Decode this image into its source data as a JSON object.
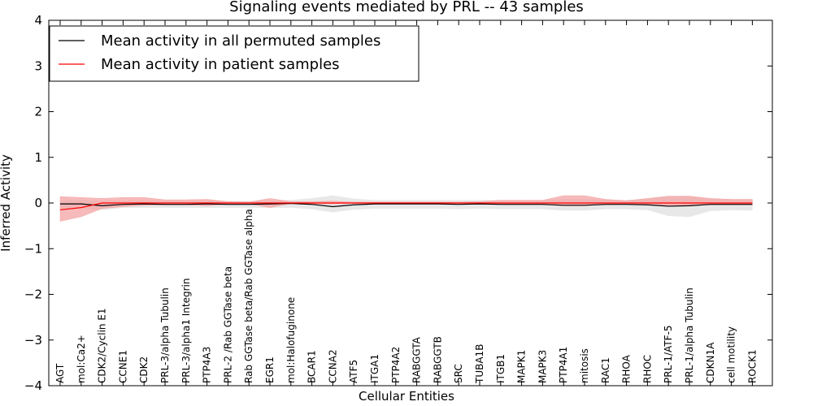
{
  "chart_data": {
    "type": "line",
    "title": "Signaling events mediated by PRL -- 43 samples",
    "xlabel": "Cellular Entities",
    "ylabel": "Inferred Activity",
    "ylim": [
      -4,
      4
    ],
    "yticks": [
      -4,
      -3,
      -2,
      -1,
      0,
      1,
      2,
      3,
      4
    ],
    "ytick_labels": [
      "−4",
      "−3",
      "−2",
      "−1",
      "0",
      "1",
      "2",
      "3",
      "4"
    ],
    "grid": false,
    "legend_position": "top-left",
    "categories": [
      "AGT",
      "mol:Ca2+",
      "CDK2/Cyclin E1",
      "CCNE1",
      "CDK2",
      "PRL-3/alpha Tubulin",
      "PRL-3/alpha1 Integrin",
      "PTP4A3",
      "PRL-2 /Rab GGTase beta",
      "Rab GGTase beta/Rab GGTase alpha",
      "EGR1",
      "mol:Halofuginone",
      "BCAR1",
      "CCNA2",
      "ATF5",
      "ITGA1",
      "PTP4A2",
      "RABGGTA",
      "RABGGTB",
      "SRC",
      "TUBA1B",
      "ITGB1",
      "MAPK1",
      "MAPK3",
      "PTP4A1",
      "mitosis",
      "RAC1",
      "RHOA",
      "RHOC",
      "PRL-1/ATF-5",
      "PRL-1/alpha Tubulin",
      "CDKN1A",
      "cell motility",
      "ROCK1"
    ],
    "series": [
      {
        "name": "Mean activity in all permuted samples",
        "color": "#000000",
        "band_color": "#e6e6e6",
        "values": [
          -0.02,
          -0.02,
          -0.06,
          -0.03,
          -0.02,
          -0.03,
          -0.03,
          -0.02,
          -0.03,
          -0.03,
          -0.02,
          -0.01,
          -0.03,
          -0.08,
          -0.04,
          -0.02,
          -0.02,
          -0.02,
          -0.02,
          -0.03,
          -0.02,
          -0.03,
          -0.03,
          -0.03,
          -0.05,
          -0.05,
          -0.03,
          -0.03,
          -0.04,
          -0.07,
          -0.06,
          -0.03,
          -0.03,
          -0.03
        ],
        "lower": [
          -0.12,
          -0.12,
          -0.15,
          -0.1,
          -0.1,
          -0.1,
          -0.1,
          -0.1,
          -0.1,
          -0.1,
          -0.1,
          -0.1,
          -0.13,
          -0.2,
          -0.14,
          -0.12,
          -0.12,
          -0.12,
          -0.12,
          -0.13,
          -0.12,
          -0.13,
          -0.13,
          -0.13,
          -0.16,
          -0.16,
          -0.13,
          -0.13,
          -0.15,
          -0.28,
          -0.3,
          -0.17,
          -0.15,
          -0.16
        ],
        "upper": [
          0.06,
          0.06,
          0.04,
          0.04,
          0.05,
          0.04,
          0.04,
          0.06,
          0.04,
          0.04,
          0.05,
          0.06,
          0.1,
          0.16,
          0.09,
          0.06,
          0.06,
          0.06,
          0.06,
          0.06,
          0.06,
          0.06,
          0.06,
          0.06,
          0.08,
          0.08,
          0.07,
          0.06,
          0.08,
          0.14,
          0.15,
          0.09,
          0.07,
          0.08
        ]
      },
      {
        "name": "Mean activity in patient samples",
        "color": "#ff0000",
        "band_color": "#f4a3a3",
        "values": [
          -0.15,
          -0.1,
          0.0,
          0.0,
          0.0,
          0.0,
          0.0,
          0.0,
          0.0,
          0.0,
          0.0,
          0.0,
          0.0,
          0.0,
          0.0,
          0.0,
          0.0,
          0.0,
          0.0,
          0.0,
          0.0,
          0.0,
          0.0,
          0.0,
          0.0,
          0.0,
          0.0,
          0.0,
          0.0,
          0.0,
          0.0,
          0.0,
          0.0,
          0.0
        ],
        "lower": [
          -0.4,
          -0.3,
          -0.12,
          -0.08,
          -0.05,
          -0.04,
          -0.04,
          -0.06,
          -0.02,
          -0.02,
          -0.1,
          -0.01,
          -0.02,
          -0.02,
          -0.01,
          -0.01,
          -0.01,
          -0.01,
          -0.01,
          -0.01,
          -0.01,
          -0.02,
          -0.02,
          -0.02,
          -0.06,
          -0.06,
          -0.03,
          -0.03,
          -0.04,
          -0.06,
          -0.06,
          -0.04,
          -0.04,
          -0.04
        ],
        "upper": [
          0.14,
          0.12,
          0.1,
          0.12,
          0.12,
          0.07,
          0.07,
          0.08,
          0.03,
          0.02,
          0.1,
          0.03,
          0.03,
          0.04,
          0.02,
          0.02,
          0.02,
          0.02,
          0.02,
          0.02,
          0.03,
          0.06,
          0.06,
          0.06,
          0.16,
          0.16,
          0.08,
          0.05,
          0.1,
          0.15,
          0.15,
          0.1,
          0.08,
          0.08
        ]
      }
    ]
  }
}
